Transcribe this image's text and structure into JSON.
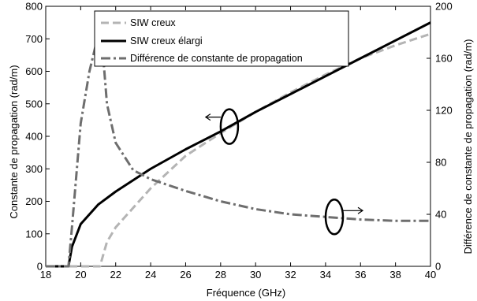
{
  "chart_data": {
    "type": "line",
    "title": "",
    "xlabel": "Fréquence (GHz)",
    "ylabel_left": "Constante de propagation (rad/m)",
    "ylabel_right": "Différence de constante de propagation (rad/m)",
    "xlim": [
      18,
      40
    ],
    "ylim_left": [
      0,
      800
    ],
    "ylim_right": [
      0,
      200
    ],
    "x_ticks": [
      18,
      20,
      22,
      24,
      26,
      28,
      30,
      32,
      34,
      36,
      38,
      40
    ],
    "y_left_ticks": [
      0,
      100,
      200,
      300,
      400,
      500,
      600,
      700,
      800
    ],
    "y_right_ticks": [
      0,
      40,
      80,
      120,
      160,
      200
    ],
    "grid": false,
    "legend_position": "top-left",
    "series": [
      {
        "name": "SIW creux",
        "axis": "left",
        "style": "dashed",
        "color": "#b4b4b4",
        "x": [
          18,
          21.1,
          21.5,
          22,
          23,
          24,
          26,
          28,
          30,
          32,
          34,
          36,
          38,
          40
        ],
        "y": [
          0,
          0,
          75,
          120,
          180,
          240,
          340,
          410,
          475,
          535,
          590,
          640,
          680,
          715
        ]
      },
      {
        "name": "SIW creux élargi",
        "axis": "left",
        "style": "solid",
        "color": "#000000",
        "x": [
          18,
          19.3,
          19.5,
          20,
          21,
          22,
          24,
          26,
          28,
          30,
          32,
          34,
          36,
          38,
          40
        ],
        "y": [
          0,
          0,
          60,
          130,
          190,
          230,
          300,
          360,
          415,
          475,
          530,
          585,
          640,
          695,
          750
        ]
      },
      {
        "name": "Différence de constante de propagation",
        "axis": "right",
        "style": "dashdot",
        "color": "#6e6e6e",
        "x": [
          18,
          19.3,
          19.5,
          20,
          20.5,
          21,
          21.15,
          21.5,
          22,
          23,
          24,
          26,
          28,
          30,
          32,
          34,
          36,
          38,
          40
        ],
        "y": [
          0,
          0,
          30,
          110,
          150,
          178,
          184,
          125,
          95,
          74,
          67,
          58,
          50,
          44,
          40,
          38,
          36,
          35,
          35
        ]
      }
    ],
    "annotations": [
      {
        "type": "ellipse-arrow",
        "axis": "left",
        "direction": "left",
        "x": 28.5,
        "y": 430
      },
      {
        "type": "ellipse-arrow",
        "axis": "right",
        "direction": "right",
        "x": 34.5,
        "y": 38
      }
    ]
  },
  "colors": {
    "axis": "#000000",
    "background": "#ffffff"
  }
}
